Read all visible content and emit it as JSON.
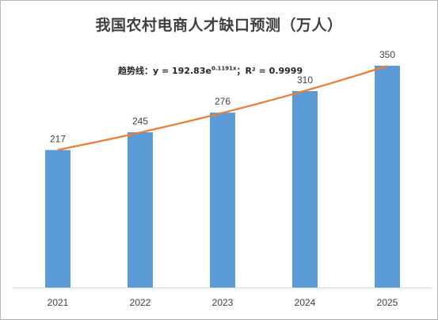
{
  "chart_data": {
    "type": "bar",
    "title": "我国农村电商人才缺口预测（万人）",
    "categories": [
      "2021",
      "2022",
      "2023",
      "2024",
      "2025"
    ],
    "values": [
      217,
      245,
      276,
      310,
      350
    ],
    "ylim": [
      0,
      380
    ],
    "grid": false,
    "legend": "none",
    "trendline": {
      "type": "exponential",
      "label_prefix": "趋势线：",
      "label_formula": "y = 192.83e",
      "label_exponent": "0.1191x",
      "label_r2": "；R² = 0.9999",
      "a": 192.83,
      "b": 0.1191
    },
    "colors": {
      "bar": "#5b9bd5",
      "trendline": "#ed7d31"
    }
  }
}
